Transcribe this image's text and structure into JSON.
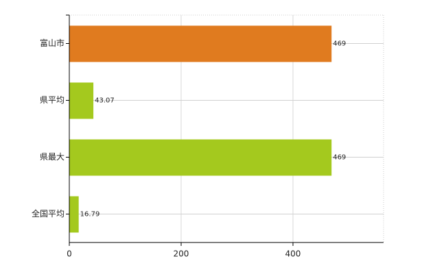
{
  "chart_data": {
    "type": "bar",
    "orientation": "horizontal",
    "categories": [
      "富山市",
      "県平均",
      "県最大",
      "全国平均"
    ],
    "values": [
      469,
      43.07,
      469,
      16.79
    ],
    "colors": [
      "#e07b1f",
      "#a4c91e",
      "#a4c91e",
      "#a4c91e"
    ],
    "xlim": [
      0,
      562
    ],
    "xticks": [
      0,
      200,
      400
    ],
    "grid": true
  }
}
